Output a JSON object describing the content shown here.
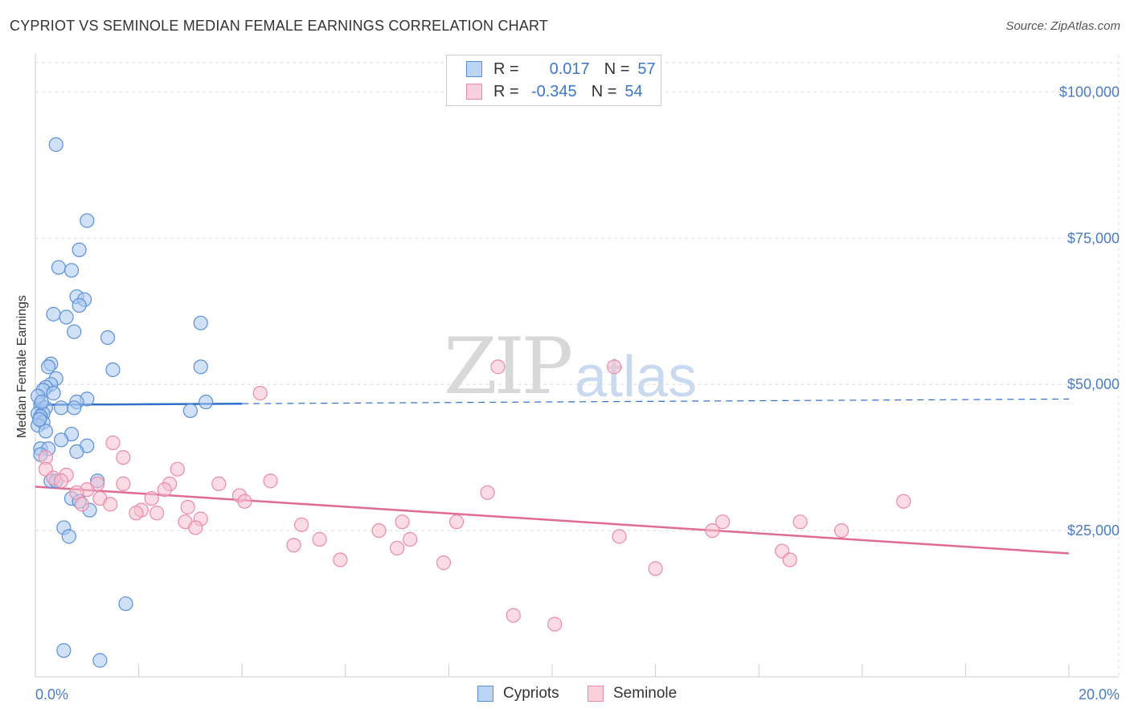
{
  "title": "CYPRIOT VS SEMINOLE MEDIAN FEMALE EARNINGS CORRELATION CHART",
  "source": "Source: ZipAtlas.com",
  "watermark": {
    "zip": "ZIP",
    "atlas": "atlas"
  },
  "legend_top": {
    "rows": [
      {
        "r_label": "R =",
        "r_value": "0.017",
        "n_label": "N =",
        "n_value": "57"
      },
      {
        "r_label": "R =",
        "r_value": "-0.345",
        "n_label": "N =",
        "n_value": "54"
      }
    ]
  },
  "legend_bottom": {
    "items": [
      "Cypriots",
      "Seminole"
    ]
  },
  "colors": {
    "cypriots_fill": "#a9c8f0",
    "cypriots_stroke": "#5b8fd6",
    "cypriots_line": "#2d6fcb",
    "seminole_fill": "#f7bfd0",
    "seminole_stroke": "#e88aa8",
    "seminole_line": "#e06b93",
    "tick_text": "#4a7cc4",
    "grid": "#dddddd"
  },
  "chart_data": {
    "type": "scatter",
    "title": "CYPRIOT VS SEMINOLE MEDIAN FEMALE EARNINGS CORRELATION CHART",
    "xlabel": "",
    "ylabel": "Median Female Earnings",
    "xlim": [
      0,
      20
    ],
    "ylim": [
      0,
      105000
    ],
    "x_tick_labels": [
      "0.0%",
      "20.0%"
    ],
    "y_ticks": [
      25000,
      50000,
      75000,
      100000
    ],
    "y_tick_labels": [
      "$25,000",
      "$50,000",
      "$75,000",
      "$100,000"
    ],
    "grid": true,
    "series": [
      {
        "name": "Cypriots",
        "r": 0.017,
        "n": 57,
        "points": [
          [
            0.4,
            91000
          ],
          [
            1.0,
            78000
          ],
          [
            0.85,
            73000
          ],
          [
            0.45,
            70000
          ],
          [
            0.7,
            69500
          ],
          [
            0.8,
            65000
          ],
          [
            0.95,
            64500
          ],
          [
            0.85,
            63500
          ],
          [
            0.35,
            62000
          ],
          [
            0.6,
            61500
          ],
          [
            3.2,
            60500
          ],
          [
            0.75,
            59000
          ],
          [
            1.4,
            58000
          ],
          [
            0.3,
            53500
          ],
          [
            0.25,
            53000
          ],
          [
            3.2,
            53000
          ],
          [
            1.5,
            52500
          ],
          [
            0.4,
            51000
          ],
          [
            0.3,
            50000
          ],
          [
            0.2,
            49500
          ],
          [
            0.15,
            49000
          ],
          [
            0.35,
            48500
          ],
          [
            1.0,
            47500
          ],
          [
            0.8,
            47000
          ],
          [
            3.3,
            47000
          ],
          [
            0.1,
            46500
          ],
          [
            0.2,
            46000
          ],
          [
            0.5,
            46000
          ],
          [
            0.75,
            46000
          ],
          [
            3.0,
            45500
          ],
          [
            0.05,
            45000
          ],
          [
            0.15,
            45000
          ],
          [
            0.1,
            44500
          ],
          [
            0.15,
            43500
          ],
          [
            0.05,
            43000
          ],
          [
            0.2,
            42000
          ],
          [
            0.7,
            41500
          ],
          [
            0.5,
            40500
          ],
          [
            1.0,
            39500
          ],
          [
            0.1,
            39000
          ],
          [
            0.25,
            39000
          ],
          [
            0.8,
            38500
          ],
          [
            1.2,
            33500
          ],
          [
            0.3,
            33500
          ],
          [
            0.4,
            33500
          ],
          [
            0.7,
            30500
          ],
          [
            0.85,
            30000
          ],
          [
            1.05,
            28500
          ],
          [
            0.55,
            25500
          ],
          [
            0.65,
            24000
          ],
          [
            1.75,
            12500
          ],
          [
            0.55,
            4500
          ],
          [
            1.25,
            2800
          ],
          [
            0.05,
            48000
          ],
          [
            0.1,
            38000
          ],
          [
            0.08,
            44000
          ],
          [
            0.12,
            47000
          ]
        ]
      },
      {
        "name": "Seminole",
        "r": -0.345,
        "n": 54,
        "points": [
          [
            8.95,
            53000
          ],
          [
            11.2,
            53000
          ],
          [
            4.35,
            48500
          ],
          [
            1.5,
            40000
          ],
          [
            0.2,
            37500
          ],
          [
            1.7,
            37500
          ],
          [
            0.2,
            35500
          ],
          [
            2.75,
            35500
          ],
          [
            0.6,
            34500
          ],
          [
            0.35,
            34000
          ],
          [
            0.5,
            33500
          ],
          [
            4.55,
            33500
          ],
          [
            3.55,
            33000
          ],
          [
            1.7,
            33000
          ],
          [
            2.6,
            33000
          ],
          [
            1.2,
            33000
          ],
          [
            1.0,
            32000
          ],
          [
            2.5,
            32000
          ],
          [
            0.8,
            31500
          ],
          [
            8.75,
            31500
          ],
          [
            3.95,
            31000
          ],
          [
            1.25,
            30500
          ],
          [
            2.25,
            30500
          ],
          [
            4.05,
            30000
          ],
          [
            0.9,
            29500
          ],
          [
            1.45,
            29500
          ],
          [
            2.95,
            29000
          ],
          [
            16.8,
            30000
          ],
          [
            2.05,
            28500
          ],
          [
            2.35,
            28000
          ],
          [
            1.95,
            28000
          ],
          [
            3.2,
            27000
          ],
          [
            7.1,
            26500
          ],
          [
            8.15,
            26500
          ],
          [
            13.3,
            26500
          ],
          [
            14.8,
            26500
          ],
          [
            2.9,
            26500
          ],
          [
            5.15,
            26000
          ],
          [
            3.1,
            25500
          ],
          [
            6.65,
            25000
          ],
          [
            15.6,
            25000
          ],
          [
            13.1,
            25000
          ],
          [
            5.5,
            23500
          ],
          [
            7.25,
            23500
          ],
          [
            11.3,
            24000
          ],
          [
            5.0,
            22500
          ],
          [
            7.0,
            22000
          ],
          [
            14.45,
            21500
          ],
          [
            14.6,
            20000
          ],
          [
            5.9,
            20000
          ],
          [
            7.9,
            19500
          ],
          [
            12.0,
            18500
          ],
          [
            9.25,
            10500
          ],
          [
            10.05,
            9000
          ]
        ]
      }
    ],
    "trendlines": [
      {
        "series": "Cypriots",
        "solid_x": [
          0,
          4.0
        ],
        "dashed_x": [
          4.0,
          20
        ],
        "y_at_x0": 46500,
        "slope_per_unit": 50
      },
      {
        "series": "Seminole",
        "solid_x": [
          0,
          20
        ],
        "y_at_x0": 32500,
        "slope_per_unit": -570
      }
    ]
  }
}
